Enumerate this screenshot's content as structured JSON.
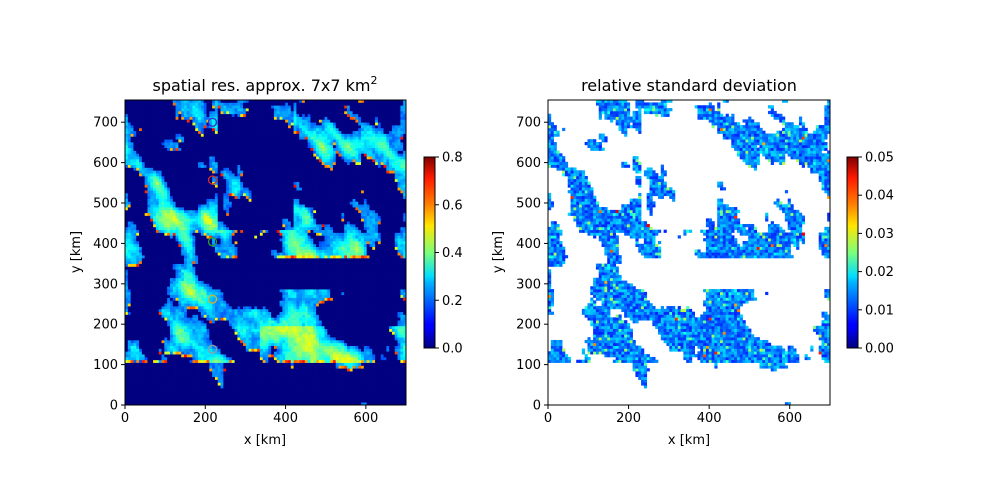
{
  "chart_data": [
    {
      "type": "heatmap",
      "title": "spatial res. approx. 7x7 km",
      "title_superscript": "2",
      "xlabel": "x [km]",
      "ylabel": "y [km]",
      "xlim": [
        0,
        700
      ],
      "ylim": [
        0,
        755
      ],
      "xticks": [
        "0",
        "200",
        "400",
        "600"
      ],
      "yticks": [
        "0",
        "100",
        "200",
        "300",
        "400",
        "500",
        "600",
        "700"
      ],
      "colormap": "jet",
      "colorbar": {
        "min": 0.0,
        "max": 0.8,
        "ticks": [
          "0.0",
          "0.2",
          "0.4",
          "0.6",
          "0.8"
        ]
      },
      "grid": "100x108 cells of 7 km, values in [0, 0.8]",
      "markers": [
        {
          "x": 218,
          "y": 700,
          "color": "#3d2ccf"
        },
        {
          "x": 218,
          "y": 557,
          "color": "#d7301f"
        },
        {
          "x": 218,
          "y": 404,
          "color": "#2ca02c"
        },
        {
          "x": 218,
          "y": 262,
          "color": "#d4b32a"
        },
        {
          "x": 218,
          "y": 138,
          "color": "#9b9b9b"
        }
      ]
    },
    {
      "type": "heatmap",
      "title": "relative standard deviation",
      "xlabel": "x [km]",
      "ylabel": "y [km]",
      "xlim": [
        0,
        700
      ],
      "ylim": [
        0,
        755
      ],
      "xticks": [
        "0",
        "200",
        "400",
        "600"
      ],
      "yticks": [
        "0",
        "100",
        "200",
        "300",
        "400",
        "500",
        "600",
        "700"
      ],
      "colormap": "jet",
      "masked_color": "#ffffff",
      "colorbar": {
        "min": 0.0,
        "max": 0.05,
        "ticks": [
          "0.00",
          "0.01",
          "0.02",
          "0.03",
          "0.04",
          "0.05"
        ]
      },
      "grid": "100x108 cells of 7 km, values in [0, 0.05], masked where no data"
    }
  ]
}
